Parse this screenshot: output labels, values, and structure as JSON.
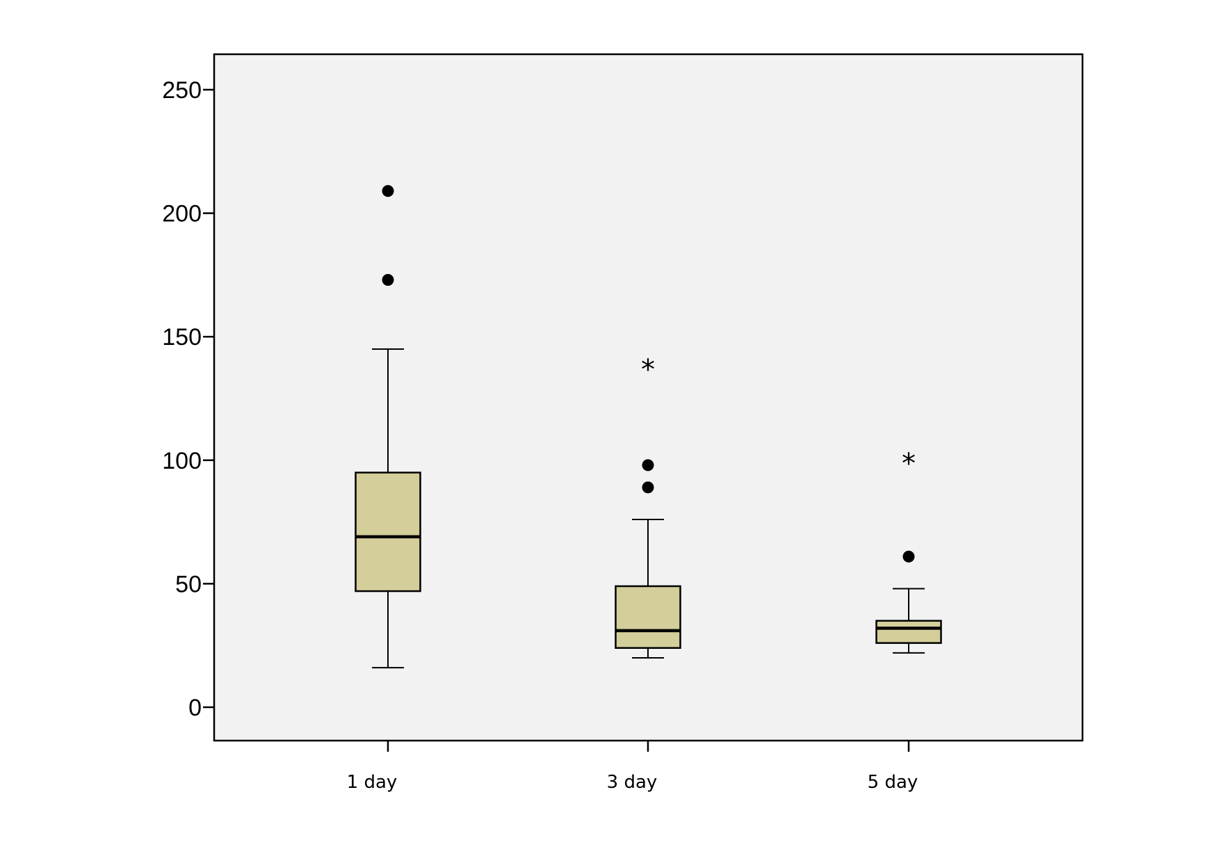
{
  "chart_data": {
    "type": "boxplot",
    "title": "",
    "xlabel": "",
    "ylabel": "",
    "ylim": [
      -13,
      264
    ],
    "yticks": [
      0,
      50,
      100,
      150,
      200,
      250
    ],
    "ytick_labels": [
      "0",
      "50",
      "100",
      "150",
      "200",
      "250"
    ],
    "categories": [
      "1 day",
      "3 day",
      "5 day"
    ],
    "boxes": [
      {
        "category": "1 day",
        "whisker_low": 16,
        "q1": 47,
        "median": 69,
        "q3": 95,
        "whisker_high": 145,
        "outliers": [
          173,
          209
        ],
        "extremes": []
      },
      {
        "category": "3 day",
        "whisker_low": 20,
        "q1": 24,
        "median": 31,
        "q3": 49,
        "whisker_high": 76,
        "outliers": [
          89,
          98
        ],
        "extremes": [
          138
        ]
      },
      {
        "category": "5 day",
        "whisker_low": 22,
        "q1": 26,
        "median": 32,
        "q3": 35,
        "whisker_high": 48,
        "outliers": [
          61
        ],
        "extremes": [
          100
        ]
      }
    ],
    "colors": {
      "box_fill": "#d4ce9a",
      "plot_background": "#f2f2f2",
      "stroke": "#000000"
    },
    "grid": false,
    "legend": "none"
  }
}
